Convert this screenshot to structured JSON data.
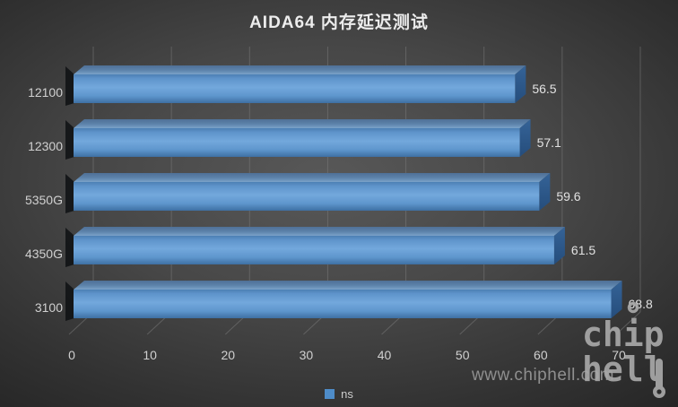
{
  "title": "AIDA64 内存延迟测试",
  "chart_data": {
    "type": "bar",
    "style": "3d-horizontal-bar",
    "orientation": "horizontal",
    "title": "AIDA64 内存延迟测试",
    "categories": [
      "12100",
      "12300",
      "5350G",
      "4350G",
      "3100"
    ],
    "series": [
      {
        "name": "ns",
        "values": [
          56.5,
          57.1,
          59.6,
          61.5,
          68.8
        ]
      }
    ],
    "value_labels": [
      "56.5",
      "57.1",
      "59.6",
      "61.5",
      "68.8"
    ],
    "xlabel": "",
    "ylabel": "",
    "xlim": [
      0,
      70
    ],
    "xticks": [
      0,
      10,
      20,
      30,
      40,
      50,
      60,
      70
    ],
    "grid": true,
    "legend_position": "bottom"
  },
  "legend": {
    "label": "ns",
    "marker_color": "#4e8cc8"
  },
  "watermark": {
    "text": "www.chiphell.com",
    "logo_line1": "chip",
    "logo_line2": "hell"
  },
  "colors": {
    "background_center": "#565656",
    "background_edge": "#1e1e1e",
    "bar_front_mid": "#73a8dc",
    "bar_front_dark": "#3e70a3",
    "bar_top": "#6a92b8",
    "bar_side": "#2e5a8c",
    "bar_shadow": "#0e1013",
    "gridline": "#7a7a7a",
    "title_text": "#ededed",
    "axis_text": "#d0d0d0",
    "value_text": "#e2e2e2",
    "legend_text": "#cccccc",
    "watermark_text": "#8f8f8f",
    "logo": "#a8a8a8"
  }
}
